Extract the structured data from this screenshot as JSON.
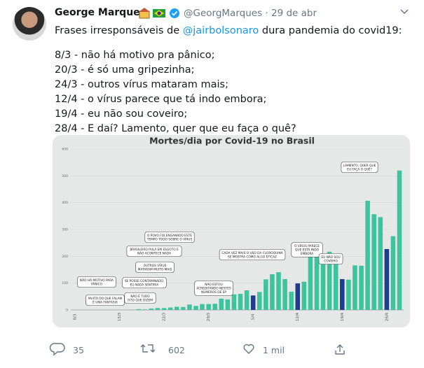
{
  "tweet": {
    "author": "George Marques",
    "handle": "@GeorgMarques",
    "separator": "·",
    "date": "29 de abr",
    "intro": {
      "before": "Frases irresponsáveis de ",
      "mention": "@jairbolsonaro",
      "after": " dura pandemia do covid19:"
    },
    "lines": [
      "8/3 - não há motivo pra pânico;",
      "20/3 - é só uma gripezinha;",
      "24/3 - outros vírus mataram mais;",
      "12/4 - o vírus parece que tá indo embora;",
      "19/4 - eu não sou coveiro;",
      "28/4 - E daí? Lamento, quer que eu faça o quê?"
    ],
    "replies": "35",
    "retweets": "602",
    "likes": "1 mil"
  },
  "chart_data": {
    "type": "bar",
    "title": "Mortes/dia por Covid-19 no Brasil",
    "categories": [
      "8/3",
      null,
      null,
      null,
      null,
      null,
      null,
      "15/3",
      null,
      null,
      null,
      null,
      null,
      null,
      "22/3",
      null,
      null,
      null,
      null,
      null,
      null,
      "29/3",
      null,
      null,
      null,
      null,
      null,
      null,
      "5/4",
      null,
      null,
      null,
      null,
      null,
      null,
      "12/4",
      null,
      null,
      null,
      null,
      null,
      null,
      "19/4",
      null,
      null,
      null,
      null,
      null,
      null,
      "26/4",
      null,
      null
    ],
    "values": [
      0,
      0,
      0,
      0,
      0,
      0,
      0,
      0,
      0,
      1,
      3,
      2,
      5,
      7,
      7,
      9,
      12,
      11,
      20,
      15,
      22,
      22,
      23,
      42,
      39,
      58,
      60,
      73,
      54,
      67,
      114,
      133,
      141,
      115,
      68,
      99,
      105,
      204,
      204,
      188,
      217,
      206,
      115,
      113,
      166,
      165,
      407,
      357,
      346,
      227,
      275,
      520
    ],
    "colors": [
      "#3ec49c",
      "#3ec49c",
      "#3ec49c",
      "#3ec49c",
      "#3ec49c",
      "#3ec49c",
      "#3ec49c",
      "#3ec49c",
      "#3ec49c",
      "#3ec49c",
      "#3ec49c",
      "#3ec49c",
      "#3ec49c",
      "#3ec49c",
      "#3ec49c",
      "#3ec49c",
      "#3ec49c",
      "#3ec49c",
      "#3ec49c",
      "#3ec49c",
      "#3ec49c",
      "#3ec49c",
      "#3ec49c",
      "#3ec49c",
      "#3ec49c",
      "#3ec49c",
      "#3ec49c",
      "#3ec49c",
      "#1f3d8f",
      "#3ec49c",
      "#3ec49c",
      "#3ec49c",
      "#3ec49c",
      "#3ec49c",
      "#3ec49c",
      "#1f3d8f",
      "#3ec49c",
      "#3ec49c",
      "#3ec49c",
      "#3ec49c",
      "#3ec49c",
      "#3ec49c",
      "#1f3d8f",
      "#3ec49c",
      "#3ec49c",
      "#3ec49c",
      "#3ec49c",
      "#3ec49c",
      "#3ec49c",
      "#1f3d8f",
      "#3ec49c",
      "#3ec49c"
    ],
    "ylim": [
      0,
      600
    ],
    "yticks": [
      0,
      100,
      200,
      300,
      400,
      500,
      600
    ],
    "grid": true,
    "annotations": [
      [
        "NÃO HÁ MOTIVO PARA",
        "PÂNICO"
      ],
      [
        "MUITO DO QUE FALAM",
        "É UMA FANTASIA"
      ],
      [
        "SE POSSE CONTAMINADO,",
        "EU NADA SENTIRIA"
      ],
      [
        "NÃO É TUDO",
        "ISTO QUE DIZEM"
      ],
      [
        "OUTROS VÍRUS",
        "MATARAM MUITO MAIS"
      ],
      [
        "BRASILEIRO PULA EM ESGOTO E",
        "NÃO ACONTECE NADA"
      ],
      [
        "O POVO FOI ENGANADO ESTE",
        "TEMPO TODO SOBRE O VÍRUS"
      ],
      [
        "NÃO ESTOU",
        "ACREDITANDO NESTES",
        "NÚMEROS DE SP"
      ],
      [
        "CADA VEZ MAIS O USO DA CLOROQUINA",
        "SE MOSTRA COMO ALGO EFICAZ"
      ],
      [
        "O VÍRUS PARECE",
        "QUE ESTÁ INDO",
        "EMBORA"
      ],
      [
        "EU NÃO SOU",
        "COVEIRO"
      ],
      [
        "LAMENTO, QUER QUE",
        "EU FAÇA O QUÊ?"
      ]
    ]
  }
}
